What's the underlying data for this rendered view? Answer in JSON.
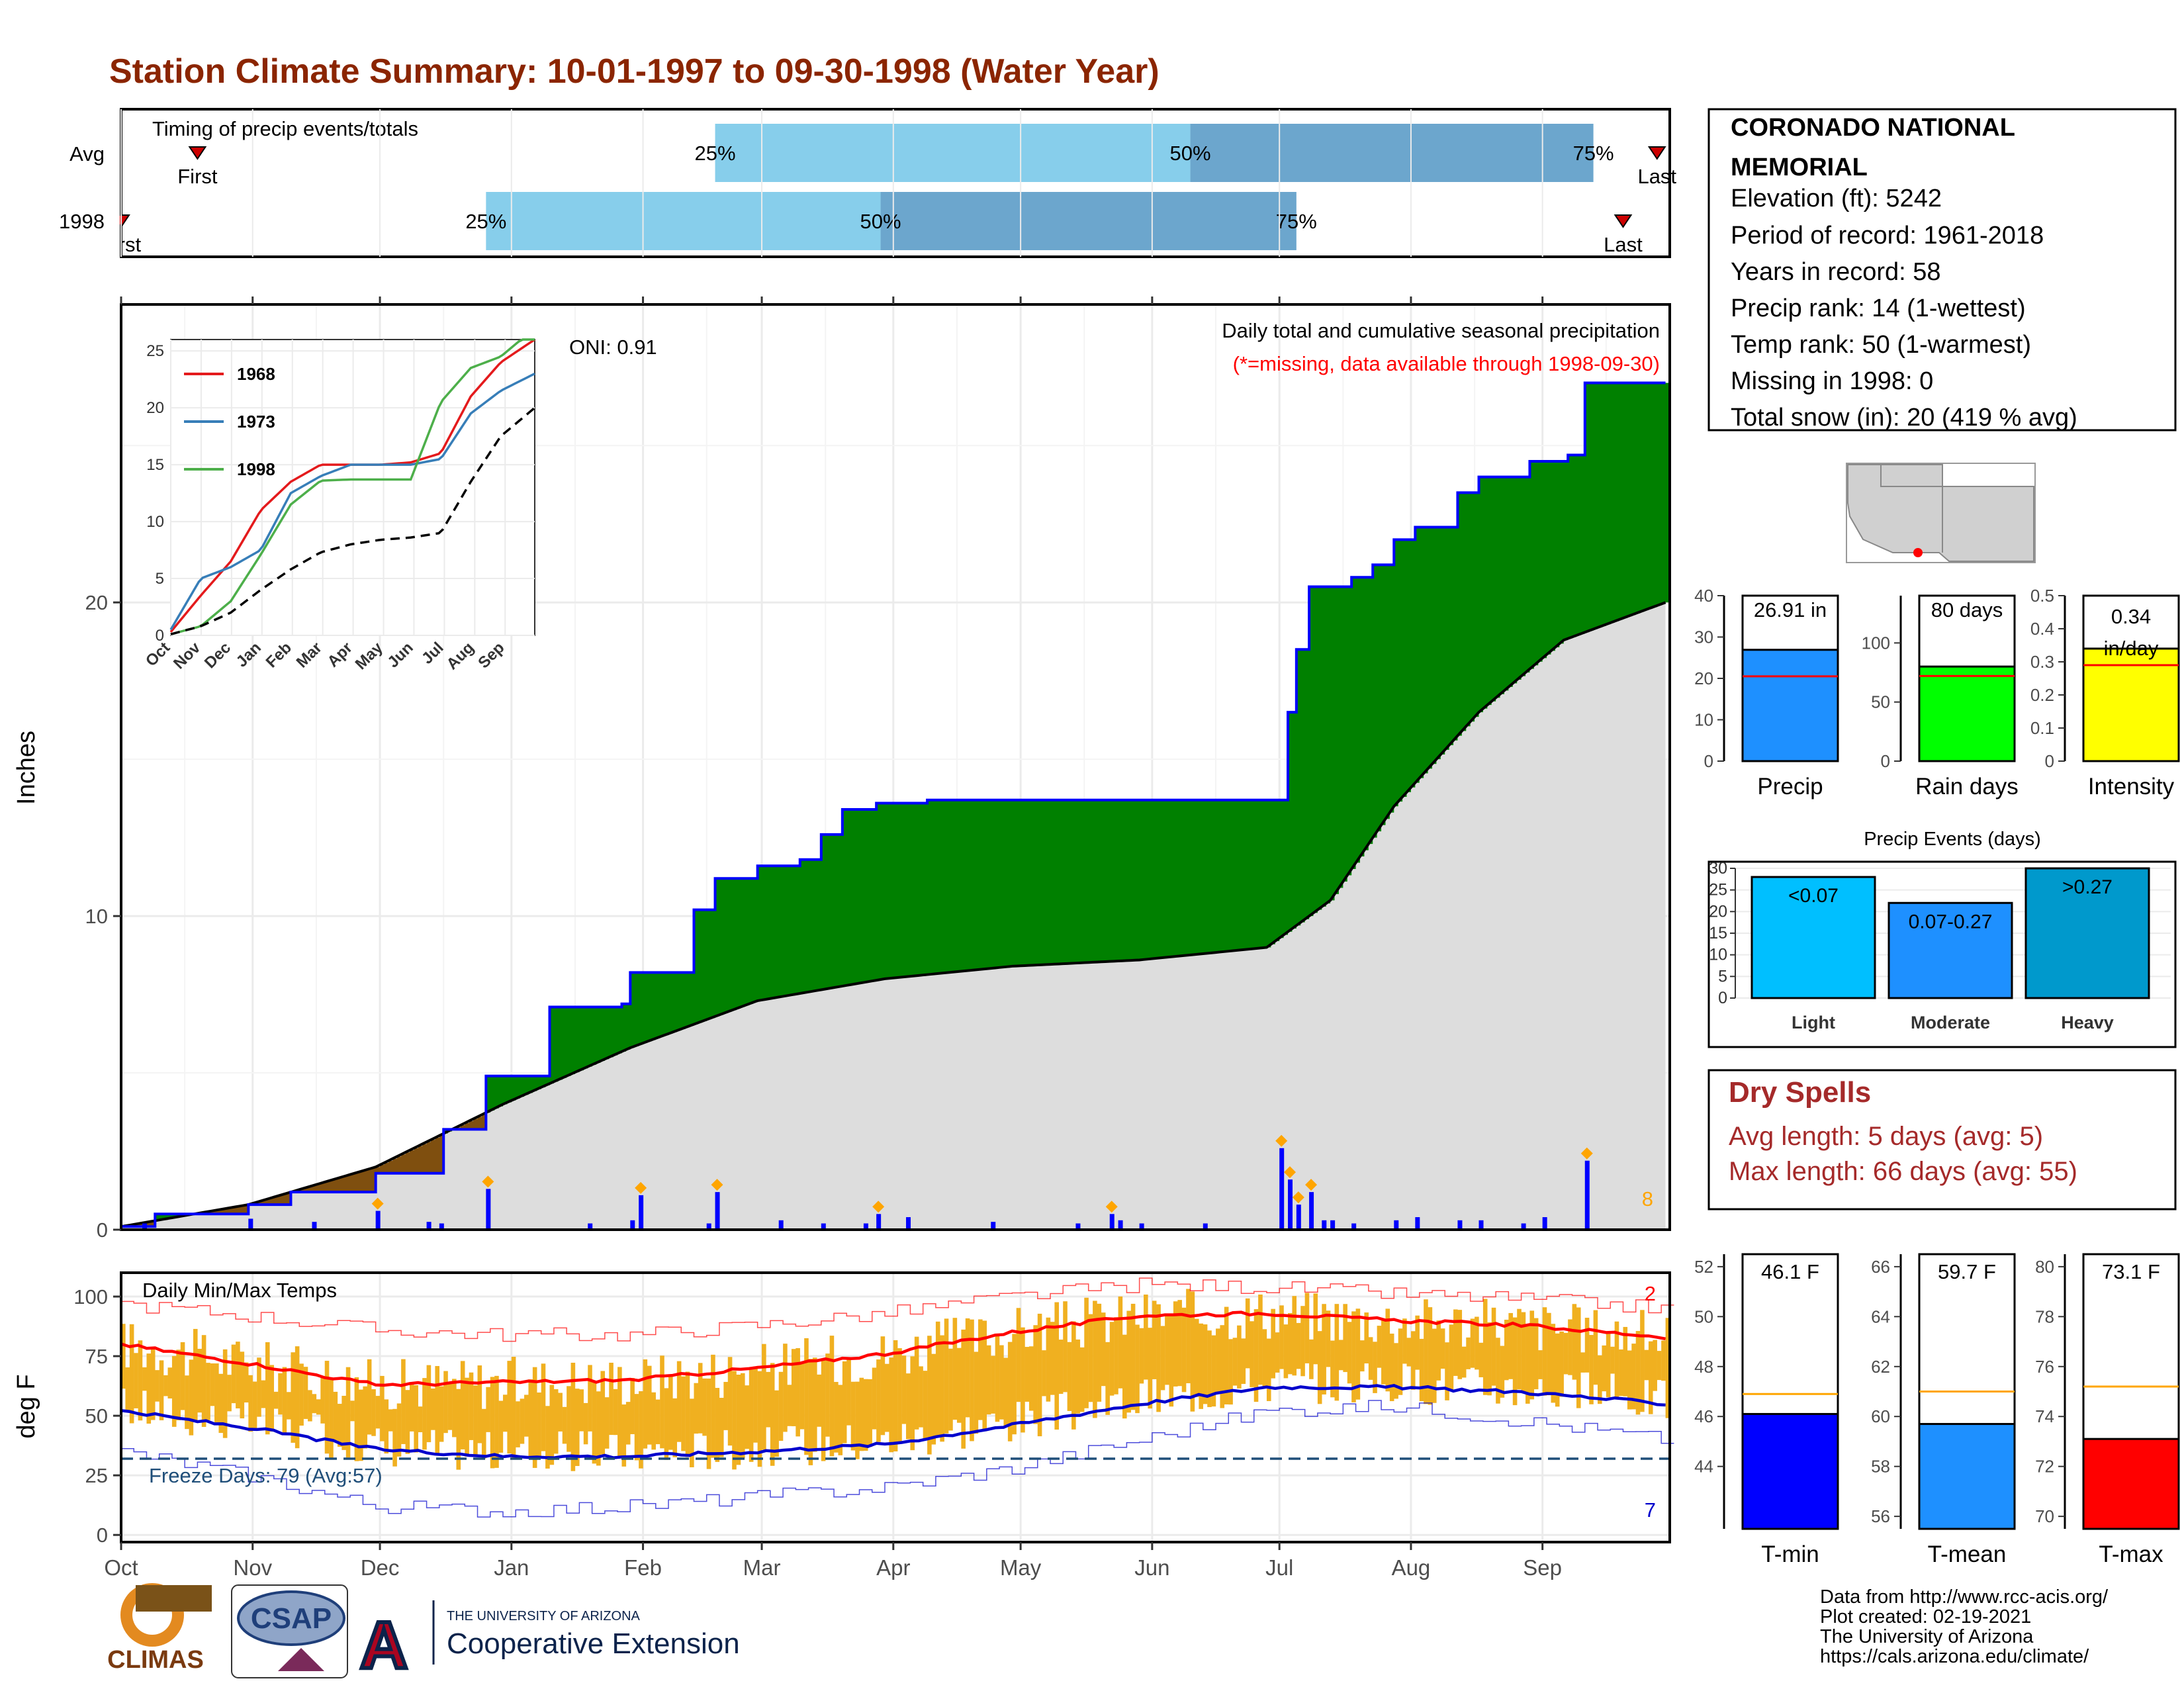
{
  "title": "Station Climate Summary: 10-01-1997 to 09-30-1998 (Water Year)",
  "colors": {
    "title": "#8B2500",
    "precip_cum_fill": "#008000",
    "precip_line": "#0000FF",
    "avg_fill": "#DDDDDD",
    "deficit_fill": "#7F4F0F",
    "quantile_light": "#87CEEB",
    "quantile_dark": "#6CA6CD",
    "temp_bar": "#F0B020",
    "temp_max": "#FF0000",
    "temp_min": "#0000CC",
    "dry_spells": "#A52A2A"
  },
  "timing": {
    "label": "Timing of precip events/totals",
    "rows": [
      "Avg",
      "1998"
    ],
    "first_label": "First",
    "last_label": "Last",
    "pct_labels": [
      "25%",
      "50%",
      "75%"
    ],
    "avg_day": {
      "first": 18,
      "p25": 140,
      "p50": 252,
      "p75": 347,
      "last": 362
    },
    "y1998_day": {
      "first": 0,
      "p25": 86,
      "p50": 179,
      "p75": 277,
      "last": 354
    }
  },
  "station": {
    "name": "CORONADO NATIONAL MEMORIAL",
    "lines": [
      "Elevation (ft): 5242",
      "Period of record: 1961-2018",
      "Years in record: 58",
      "Precip rank: 14 (1-wettest)",
      "Temp rank: 50 (1-warmest)",
      "Missing in 1998: 0",
      "Total snow (in): 20 (419 % avg)"
    ]
  },
  "precip_panel": {
    "ylabel": "Inches",
    "oni": "ONI: 0.91",
    "header1": "Daily total and cumulative seasonal precipitation",
    "header2": "(*=missing, data available through 1998-09-30)",
    "corner_count": "8",
    "y_ticks": [
      0,
      10,
      20
    ],
    "ylim": [
      0,
      29.5
    ],
    "months": [
      "Oct",
      "Nov",
      "Dec",
      "Jan",
      "Feb",
      "Mar",
      "Apr",
      "May",
      "Jun",
      "Jul",
      "Aug",
      "Sep"
    ],
    "month_days": [
      0,
      31,
      61,
      92,
      123,
      151,
      182,
      212,
      243,
      273,
      304,
      335
    ]
  },
  "inset": {
    "legend": [
      "1968",
      "1973",
      "1998"
    ],
    "legend_colors": [
      "#E41A1C",
      "#377EB8",
      "#4DAF4A"
    ],
    "y_ticks": [
      0,
      5,
      10,
      15,
      20,
      25
    ],
    "x_labels": [
      "Oct",
      "Nov",
      "Dec",
      "Jan",
      "Feb",
      "Mar",
      "Apr",
      "May",
      "Jun",
      "Jul",
      "Aug",
      "Sep"
    ]
  },
  "temp_panel": {
    "ylabel": "deg F",
    "label": "Daily Min/Max Temps",
    "freeze_label": "Freeze Days: 79 (Avg:57)",
    "count_top": "2",
    "count_bottom": "7",
    "y_ticks": [
      0,
      25,
      50,
      75,
      100
    ],
    "ylim": [
      -3,
      110
    ],
    "freeze_line": 32
  },
  "summary_bars": {
    "precip": {
      "label": "Precip",
      "value": 26.91,
      "text": "26.91 in",
      "avg": 20.5,
      "ylim": [
        0,
        40
      ],
      "ticks": [
        0,
        10,
        20,
        30,
        40
      ],
      "color": "#1E90FF"
    },
    "rain_days": {
      "label": "Rain days",
      "value": 80,
      "text": "80 days",
      "avg": 72,
      "ylim": [
        0,
        140
      ],
      "ticks": [
        0,
        50,
        100
      ],
      "color": "#00FF00"
    },
    "intensity": {
      "label": "Intensity",
      "value": 0.34,
      "text": "0.34 in/day",
      "avg": 0.29,
      "ylim": [
        0,
        0.5
      ],
      "ticks": [
        0.0,
        0.1,
        0.2,
        0.3,
        0.4,
        0.5
      ],
      "color": "#FFFF00"
    }
  },
  "events": {
    "title": "Precip Events (days)",
    "ticks": [
      0,
      5,
      10,
      15,
      20,
      25,
      30
    ],
    "ylim": [
      0,
      30
    ],
    "categories": [
      "Light",
      "Moderate",
      "Heavy"
    ],
    "values": [
      28,
      22,
      30
    ],
    "labels": [
      "<0.07",
      "0.07-0.27",
      ">0.27"
    ],
    "colors": [
      "#00BFFF",
      "#1E90FF",
      "#0099CC"
    ]
  },
  "dry_spells": {
    "title": "Dry Spells",
    "avg_line": "Avg length: 5 days (avg: 5)",
    "max_line": "Max length: 66 days (avg: 55)"
  },
  "temp_bars": {
    "tmin": {
      "label": "T-min",
      "value": 46.1,
      "text": "46.1 F",
      "avg": 46.9,
      "ylim": [
        41.5,
        52.5
      ],
      "ticks": [
        44,
        46,
        48,
        50,
        52
      ],
      "color": "#0000FF"
    },
    "tmean": {
      "label": "T-mean",
      "value": 59.7,
      "text": "59.7 F",
      "avg": 61.0,
      "ylim": [
        55.5,
        66.5
      ],
      "ticks": [
        56,
        58,
        60,
        62,
        64,
        66
      ],
      "color": "#1E90FF"
    },
    "tmax": {
      "label": "T-max",
      "value": 73.1,
      "text": "73.1 F",
      "avg": 75.2,
      "ylim": [
        69.5,
        80.5
      ],
      "ticks": [
        70,
        72,
        74,
        76,
        78,
        80
      ],
      "color": "#FF0000"
    }
  },
  "logos": {
    "climas": "CLIMAS",
    "csap": "CSAP",
    "uofa_top": "THE UNIVERSITY OF ARIZONA",
    "uofa_bottom": "Cooperative Extension",
    "uofa_letter": "A"
  },
  "footer": [
    "Data from http://www.rcc-acis.org/",
    "Plot created: 02-19-2021",
    "The University of Arizona",
    "https://cals.arizona.edu/climate/"
  ],
  "chart_data": [
    {
      "type": "area",
      "title": "Daily total and cumulative seasonal precipitation",
      "ylabel": "Inches",
      "ylim": [
        0,
        29.5
      ],
      "series": [
        {
          "name": "cumulative",
          "x": [
            0,
            8,
            30,
            40,
            60,
            76,
            86,
            101,
            118,
            120,
            135,
            140,
            150,
            155,
            160,
            165,
            170,
            178,
            190,
            210,
            243,
            270,
            275,
            277,
            280,
            290,
            295,
            300,
            305,
            315,
            320,
            332,
            341,
            345,
            364
          ],
          "y": [
            0.1,
            0.5,
            0.8,
            1.2,
            1.8,
            3.2,
            4.9,
            7.1,
            7.2,
            8.2,
            10.2,
            11.2,
            11.6,
            11.6,
            11.8,
            12.6,
            13.4,
            13.6,
            13.7,
            13.7,
            13.7,
            13.7,
            16.5,
            18.5,
            20.5,
            20.8,
            21.2,
            22.0,
            22.4,
            23.5,
            24.0,
            24.5,
            24.7,
            27.0,
            27.0
          ]
        },
        {
          "name": "average",
          "x": [
            0,
            30,
            60,
            90,
            120,
            150,
            180,
            210,
            240,
            270,
            285,
            300,
            320,
            340,
            364
          ],
          "y": [
            0.1,
            0.8,
            2.0,
            4.0,
            5.8,
            7.3,
            8.0,
            8.4,
            8.6,
            9.0,
            10.5,
            13.5,
            16.5,
            18.8,
            20.0
          ]
        }
      ],
      "daily_days": [
        5,
        30,
        45,
        60,
        72,
        75,
        86,
        110,
        120,
        122,
        138,
        140,
        155,
        165,
        175,
        178,
        185,
        205,
        225,
        233,
        235,
        240,
        255,
        273,
        275,
        277,
        280,
        283,
        285,
        290,
        300,
        305,
        315,
        320,
        330,
        335,
        345
      ],
      "daily_values": [
        0.2,
        0.35,
        0.25,
        0.6,
        0.25,
        0.2,
        1.3,
        0.2,
        0.3,
        1.1,
        0.2,
        1.2,
        0.3,
        0.2,
        0.2,
        0.5,
        0.4,
        0.25,
        0.2,
        0.5,
        0.3,
        0.2,
        0.2,
        2.6,
        1.6,
        0.8,
        1.2,
        0.3,
        0.3,
        0.2,
        0.3,
        0.4,
        0.3,
        0.3,
        0.2,
        0.4,
        2.2
      ]
    },
    {
      "type": "line",
      "title": "Daily Min/Max Temps",
      "ylabel": "deg F",
      "ylim": [
        -3,
        110
      ],
      "x": [
        0,
        30,
        60,
        90,
        120,
        150,
        180,
        210,
        240,
        270,
        300,
        330,
        364
      ],
      "series": [
        {
          "name": "avg max",
          "values": [
            80,
            72,
            63,
            64,
            65,
            70,
            76,
            85,
            92,
            93,
            90,
            88,
            83
          ]
        },
        {
          "name": "avg min",
          "values": [
            52,
            45,
            36,
            33,
            33,
            35,
            38,
            46,
            55,
            62,
            62,
            60,
            55
          ]
        },
        {
          "name": "record max",
          "values": [
            97,
            92,
            86,
            84,
            84,
            88,
            93,
            100,
            105,
            104,
            101,
            99,
            95
          ]
        },
        {
          "name": "record min",
          "values": [
            35,
            25,
            12,
            10,
            12,
            16,
            20,
            28,
            40,
            52,
            54,
            48,
            40
          ]
        }
      ],
      "freeze_line": 32
    },
    {
      "type": "line",
      "title": "",
      "x_labels": [
        "Oct",
        "Nov",
        "Dec",
        "Jan",
        "Feb",
        "Mar",
        "Apr",
        "May",
        "Jun",
        "Jul",
        "Aug",
        "Sep"
      ],
      "ylim": [
        0,
        26
      ],
      "x": [
        0,
        30,
        60,
        90,
        120,
        150,
        180,
        210,
        240,
        270,
        300,
        330,
        364
      ],
      "series": [
        {
          "name": "1968",
          "values": [
            0.3,
            3.5,
            6.5,
            11.0,
            13.5,
            15.0,
            15.0,
            15.0,
            15.2,
            16.0,
            21.0,
            24.0,
            26.0
          ]
        },
        {
          "name": "1973",
          "values": [
            0.5,
            5.0,
            6.0,
            7.5,
            12.5,
            14.0,
            15.0,
            15.0,
            15.0,
            15.5,
            19.5,
            21.5,
            23.0
          ]
        },
        {
          "name": "1998",
          "values": [
            0.1,
            0.8,
            3.0,
            7.1,
            11.5,
            13.6,
            13.7,
            13.7,
            13.7,
            20.5,
            23.5,
            24.5,
            27.0
          ]
        },
        {
          "name": "average",
          "values": [
            0.1,
            0.8,
            2.0,
            4.0,
            5.8,
            7.3,
            8.0,
            8.4,
            8.6,
            9.0,
            13.5,
            17.5,
            20.0
          ]
        }
      ]
    }
  ]
}
